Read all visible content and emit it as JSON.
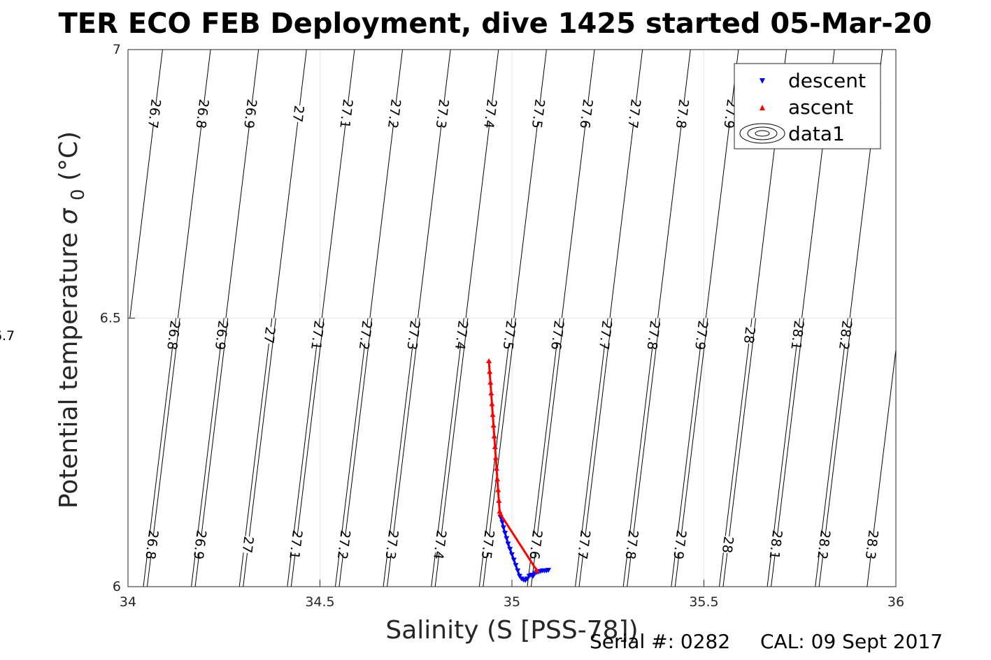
{
  "chart_data": {
    "type": "scatter",
    "title": "TER ECO FEB Deployment, dive 1425 started 05-Mar-20",
    "xlabel": "Salinity (S [PSS-78])",
    "ylabel": "Potential temperature",
    "ylabel_sigma": "σ",
    "ylabel_sub": "0",
    "ylabel_unit": "(°C)",
    "xlim": [
      34,
      36
    ],
    "ylim": [
      6,
      7
    ],
    "x_ticks": [
      "34",
      "34.5",
      "35",
      "35.5",
      "36"
    ],
    "y_ticks": [
      "6",
      "6.5",
      "7"
    ],
    "grid": true,
    "legend_position": "top-right",
    "legend": [
      "descent",
      "ascent",
      "data1"
    ],
    "series": [
      {
        "name": "descent",
        "marker": "triangle-down",
        "color": "#0000ff",
        "points": [
          [
            34.97,
            6.13
          ],
          [
            34.975,
            6.12
          ],
          [
            34.978,
            6.11
          ],
          [
            34.982,
            6.1
          ],
          [
            34.986,
            6.09
          ],
          [
            34.99,
            6.08
          ],
          [
            34.995,
            6.07
          ],
          [
            35.0,
            6.06
          ],
          [
            35.005,
            6.05
          ],
          [
            35.01,
            6.04
          ],
          [
            35.015,
            6.03
          ],
          [
            35.02,
            6.02
          ],
          [
            35.025,
            6.015
          ],
          [
            35.03,
            6.013
          ],
          [
            35.035,
            6.012
          ],
          [
            35.04,
            6.015
          ],
          [
            35.045,
            6.02
          ],
          [
            35.05,
            6.022
          ],
          [
            35.055,
            6.02
          ],
          [
            35.06,
            6.025
          ],
          [
            35.065,
            6.027
          ],
          [
            35.07,
            6.028
          ],
          [
            35.075,
            6.029
          ],
          [
            35.08,
            6.03
          ],
          [
            35.085,
            6.03
          ],
          [
            35.09,
            6.03
          ],
          [
            35.095,
            6.031
          ]
        ]
      },
      {
        "name": "ascent",
        "marker": "triangle-up",
        "color": "#ff0000",
        "points": [
          [
            34.94,
            6.42
          ],
          [
            34.942,
            6.4
          ],
          [
            34.944,
            6.38
          ],
          [
            34.946,
            6.36
          ],
          [
            34.948,
            6.34
          ],
          [
            34.95,
            6.32
          ],
          [
            34.952,
            6.3
          ],
          [
            34.954,
            6.28
          ],
          [
            34.956,
            6.26
          ],
          [
            34.958,
            6.24
          ],
          [
            34.96,
            6.22
          ],
          [
            34.962,
            6.2
          ],
          [
            34.964,
            6.18
          ],
          [
            34.966,
            6.16
          ],
          [
            34.968,
            6.14
          ],
          [
            34.97,
            6.135
          ],
          [
            35.065,
            6.03
          ]
        ]
      }
    ],
    "contours": [
      {
        "label": "26.7",
        "x_top": 34.09,
        "x_mid": 34.0
      },
      {
        "label": "26.8",
        "x_top": 34.215,
        "x_mid": 34.125,
        "x_bot": 34.05
      },
      {
        "label": "26.9",
        "x_top": 34.34,
        "x_mid": 34.25,
        "x_bot": 34.175
      },
      {
        "label": "27",
        "x_top": 34.465,
        "x_mid": 34.375,
        "x_bot": 34.3
      },
      {
        "label": "27.1",
        "x_top": 34.59,
        "x_mid": 34.5,
        "x_bot": 34.425
      },
      {
        "label": "27.2",
        "x_top": 34.715,
        "x_mid": 34.625,
        "x_bot": 34.55
      },
      {
        "label": "27.3",
        "x_top": 34.84,
        "x_mid": 34.75,
        "x_bot": 34.675
      },
      {
        "label": "27.4",
        "x_top": 34.965,
        "x_mid": 34.875,
        "x_bot": 34.8
      },
      {
        "label": "27.5",
        "x_top": 35.09,
        "x_mid": 35.0,
        "x_bot": 34.925
      },
      {
        "label": "27.6",
        "x_top": 35.215,
        "x_mid": 35.125,
        "x_bot": 35.05
      },
      {
        "label": "27.7",
        "x_top": 35.34,
        "x_mid": 35.25,
        "x_bot": 35.175
      },
      {
        "label": "27.8",
        "x_top": 35.465,
        "x_mid": 35.375,
        "x_bot": 35.3
      },
      {
        "label": "27.9",
        "x_top": 35.59,
        "x_mid": 35.5,
        "x_bot": 35.425
      },
      {
        "label": "28",
        "x_top": 35.715,
        "x_mid": 35.625,
        "x_bot": 35.55
      },
      {
        "label": "28.1",
        "x_top": 35.84,
        "x_mid": 35.75,
        "x_bot": 35.675
      },
      {
        "label": "28.2",
        "x_top": 35.965,
        "x_mid": 35.875,
        "x_bot": 35.8
      },
      {
        "label": "28.3",
        "x_bot": 35.925
      }
    ]
  },
  "footer": {
    "serial_label": "Serial #: 0282",
    "cal_label": "CAL: 09 Sept 2017"
  },
  "colors": {
    "descent": "#0000ff",
    "ascent": "#ff0000",
    "contour": "#000000",
    "grid": "#e6e6e6",
    "axes": "#262626"
  }
}
